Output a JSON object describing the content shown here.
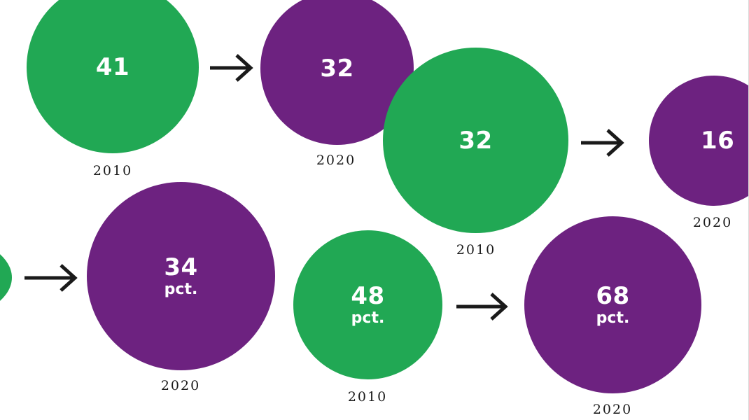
{
  "colors": {
    "green": "#21a854",
    "purple": "#6d2280",
    "arrow": "#1a1a1a",
    "background": "#ffffff"
  },
  "pairs": [
    {
      "from": {
        "value": "41",
        "unit": "",
        "year": "2010"
      },
      "to": {
        "value": "32",
        "unit": "",
        "year": "2020"
      }
    },
    {
      "from": {
        "value": "32",
        "unit": "",
        "year": "2010"
      },
      "to": {
        "value": "16",
        "unit": "",
        "year": "2020"
      }
    },
    {
      "from": {
        "value": "",
        "unit": "",
        "year": ""
      },
      "to": {
        "value": "34",
        "unit": "pct.",
        "year": "2020"
      }
    },
    {
      "from": {
        "value": "48",
        "unit": "pct.",
        "year": "2010"
      },
      "to": {
        "value": "68",
        "unit": "pct.",
        "year": "2020"
      }
    }
  ]
}
